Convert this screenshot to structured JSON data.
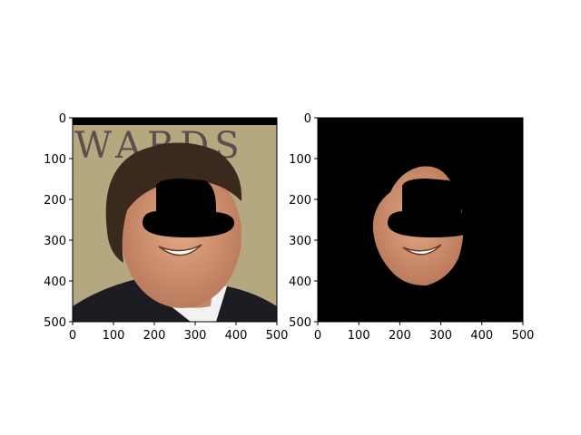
{
  "panels": [
    {
      "name": "original-photo",
      "photo_text": "WARDS",
      "x_ticks": [
        "0",
        "100",
        "200",
        "300",
        "400",
        "500"
      ],
      "y_ticks": [
        "0",
        "100",
        "200",
        "300",
        "400",
        "500"
      ]
    },
    {
      "name": "segmented-face",
      "x_ticks": [
        "0",
        "100",
        "200",
        "300",
        "400",
        "500"
      ],
      "y_ticks": [
        "0",
        "100",
        "200",
        "300",
        "400",
        "500"
      ]
    }
  ],
  "colors": {
    "mask": "#000000",
    "background_photo": "#b5a77f",
    "skin": "#d79a76",
    "hair": "#3a2a1e",
    "suit": "#1c1c22",
    "shirt": "#f2f2f2"
  }
}
